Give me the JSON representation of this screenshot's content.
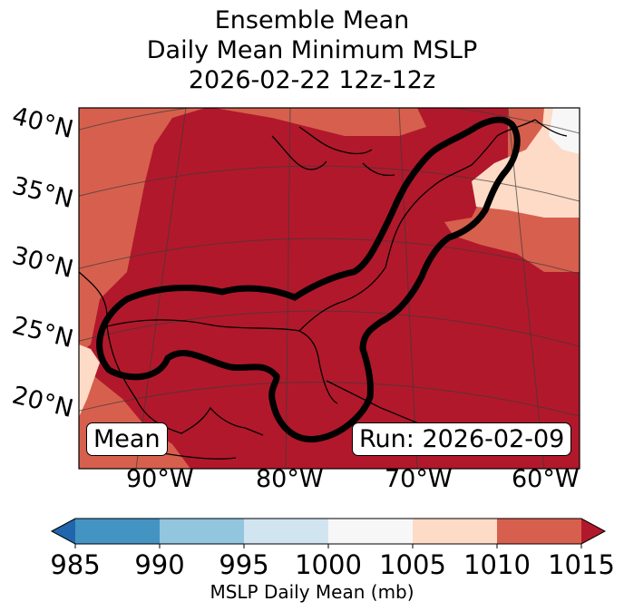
{
  "title": {
    "line1": "Ensemble Mean",
    "line2": "Daily Mean Minimum MSLP",
    "line3": "2026-02-22 12z-12z"
  },
  "map": {
    "lat_labels": [
      "40°N",
      "35°N",
      "30°N",
      "25°N",
      "20°N"
    ],
    "lon_labels": [
      "90°W",
      "80°W",
      "70°W",
      "60°W"
    ],
    "region": {
      "lon_range": [
        -97,
        -58
      ],
      "lat_range": [
        16,
        42
      ]
    },
    "mean_box": "Mean",
    "run_box": "Run: 2026-02-09",
    "contour_value_mb": 1015,
    "colors": {
      "c1015": "#b2182b",
      "c1010": "#d6604d",
      "c1005": "#fddbc7",
      "c1000": "#f7f7f7",
      "land": "#000000",
      "contour": "#000000"
    }
  },
  "colorbar": {
    "ticks": [
      "985",
      "990",
      "995",
      "1000",
      "1005",
      "1010",
      "1015"
    ],
    "label": "MSLP Daily Mean (mb)",
    "bins": [
      {
        "range": "<985",
        "color": "#2166ac"
      },
      {
        "range": "985-990",
        "color": "#4393c3"
      },
      {
        "range": "990-995",
        "color": "#92c5de"
      },
      {
        "range": "995-1000",
        "color": "#d1e5f0"
      },
      {
        "range": "1000-1005",
        "color": "#f7f7f7"
      },
      {
        "range": "1005-1010",
        "color": "#fddbc7"
      },
      {
        "range": "1010-1015",
        "color": "#d6604d"
      },
      {
        "range": ">1015",
        "color": "#b2182b"
      }
    ]
  }
}
